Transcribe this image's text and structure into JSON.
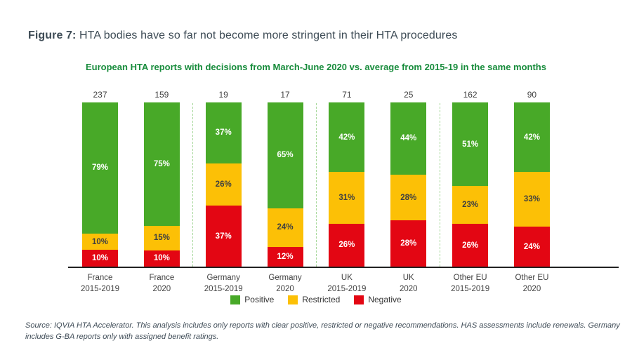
{
  "figure": {
    "title_prefix": "Figure 7:",
    "title_rest": " HTA bodies have so far not become more stringent in their HTA procedures",
    "subtitle": "European HTA reports with decisions from March-June 2020 vs. average from 2015-19 in the same months",
    "source_note": "Source: IQVIA HTA Accelerator. This analysis includes only reports with clear positive, restricted or negative recommendations. HAS assessments include renewals. Germany includes G-BA reports only with assigned benefit ratings."
  },
  "colors": {
    "positive": "#48a928",
    "restricted": "#fcc006",
    "negative": "#e30613",
    "label_on_positive": "#ffffff",
    "label_on_restricted": "#404040",
    "label_on_negative": "#ffffff",
    "subtitle_green": "#188c3c",
    "title_text": "#3d4b55",
    "axis_text": "#404040",
    "separator_dash": "#a7d89b"
  },
  "legend": [
    {
      "label": "Positive",
      "color_key": "positive"
    },
    {
      "label": "Restricted",
      "color_key": "restricted"
    },
    {
      "label": "Negative",
      "color_key": "negative"
    }
  ],
  "chart_data": {
    "type": "bar",
    "stacked": true,
    "percent_stacked": true,
    "title": "European HTA reports with decisions from March-June 2020 vs. average from 2015-19 in the same months",
    "ylim": [
      0,
      100
    ],
    "value_suffix": "%",
    "grid": false,
    "legend_position": "bottom",
    "categories": [
      "France 2015-2019",
      "France 2020",
      "Germany 2015-2019",
      "Germany 2020",
      "UK 2015-2019",
      "UK 2020",
      "Other EU 2015-2019",
      "Other EU 2020"
    ],
    "category_lines": [
      [
        "France",
        "2015-2019"
      ],
      [
        "France",
        "2020"
      ],
      [
        "Germany",
        "2015-2019"
      ],
      [
        "Germany",
        "2020"
      ],
      [
        "UK",
        "2015-2019"
      ],
      [
        "UK",
        "2020"
      ],
      [
        "Other EU",
        "2015-2019"
      ],
      [
        "Other EU",
        "2020"
      ]
    ],
    "totals": [
      237,
      159,
      19,
      17,
      71,
      25,
      162,
      90
    ],
    "series": [
      {
        "name": "Positive",
        "color_key": "positive",
        "values": [
          79,
          75,
          37,
          65,
          42,
          44,
          51,
          42
        ]
      },
      {
        "name": "Restricted",
        "color_key": "restricted",
        "values": [
          10,
          15,
          26,
          24,
          31,
          28,
          23,
          33
        ]
      },
      {
        "name": "Negative",
        "color_key": "negative",
        "values": [
          10,
          10,
          37,
          12,
          26,
          28,
          26,
          24
        ]
      }
    ],
    "group_separators_after": [
      1,
      3,
      5
    ]
  }
}
